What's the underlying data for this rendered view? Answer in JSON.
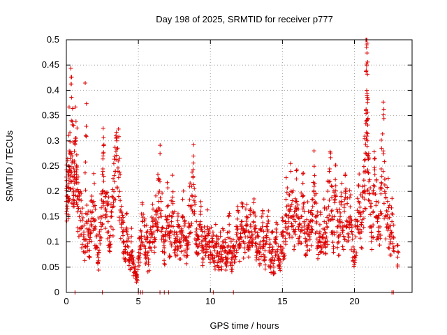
{
  "chart_data": {
    "type": "scatter",
    "title": "Day 198 of 2025, SRMTID for receiver p777",
    "xlabel": "GPS time / hours",
    "ylabel": "SRMTID / TECUs",
    "xlim": [
      0,
      24
    ],
    "ylim": [
      0,
      0.5
    ],
    "x_ticks": [
      0,
      5,
      10,
      15,
      20
    ],
    "y_ticks": [
      0,
      0.05,
      0.1,
      0.15,
      0.2,
      0.25,
      0.3,
      0.35,
      0.4,
      0.45,
      0.5
    ],
    "grid": true,
    "marker": "+",
    "color": "#dd0000",
    "series": [
      {
        "name": "SRMTID",
        "points": [
          [
            0.0,
            0.18
          ],
          [
            0.05,
            0.21
          ],
          [
            0.1,
            0.19
          ],
          [
            0.15,
            0.25
          ],
          [
            0.2,
            0.28
          ],
          [
            0.25,
            0.24
          ],
          [
            0.3,
            0.22
          ],
          [
            0.35,
            0.34
          ],
          [
            0.4,
            0.27
          ],
          [
            0.45,
            0.23
          ],
          [
            0.5,
            0.2
          ],
          [
            0.55,
            0.26
          ],
          [
            0.6,
            0.22
          ],
          [
            0.65,
            0.3
          ],
          [
            0.7,
            0.25
          ],
          [
            0.75,
            0.19
          ],
          [
            0.8,
            0.17
          ],
          [
            0.9,
            0.15
          ],
          [
            1.0,
            0.16
          ],
          [
            1.1,
            0.13
          ],
          [
            1.2,
            0.11
          ],
          [
            1.3,
            0.08
          ],
          [
            1.35,
            0.31
          ],
          [
            1.4,
            0.14
          ],
          [
            1.5,
            0.12
          ],
          [
            1.6,
            0.1
          ],
          [
            1.7,
            0.14
          ],
          [
            1.8,
            0.16
          ],
          [
            1.9,
            0.18
          ],
          [
            2.0,
            0.13
          ],
          [
            2.1,
            0.09
          ],
          [
            2.2,
            0.06
          ],
          [
            2.3,
            0.12
          ],
          [
            2.4,
            0.15
          ],
          [
            2.5,
            0.2
          ],
          [
            2.55,
            0.27
          ],
          [
            2.6,
            0.23
          ],
          [
            2.7,
            0.19
          ],
          [
            2.8,
            0.16
          ],
          [
            2.9,
            0.14
          ],
          [
            3.0,
            0.1
          ],
          [
            3.1,
            0.13
          ],
          [
            3.2,
            0.17
          ],
          [
            3.3,
            0.2
          ],
          [
            3.4,
            0.24
          ],
          [
            3.5,
            0.3
          ],
          [
            3.6,
            0.26
          ],
          [
            3.7,
            0.2
          ],
          [
            3.8,
            0.16
          ],
          [
            3.9,
            0.12
          ],
          [
            4.0,
            0.1
          ],
          [
            4.1,
            0.08
          ],
          [
            4.2,
            0.12
          ],
          [
            4.3,
            0.09
          ],
          [
            4.4,
            0.06
          ],
          [
            4.5,
            0.1
          ],
          [
            4.6,
            0.07
          ],
          [
            4.7,
            0.05
          ],
          [
            4.8,
            0.04
          ],
          [
            4.9,
            0.03
          ],
          [
            5.0,
            0.06
          ],
          [
            5.1,
            0.09
          ],
          [
            5.2,
            0.12
          ],
          [
            5.3,
            0.14
          ],
          [
            5.4,
            0.11
          ],
          [
            5.5,
            0.08
          ],
          [
            5.6,
            0.1
          ],
          [
            5.7,
            0.06
          ],
          [
            5.8,
            0.09
          ],
          [
            5.9,
            0.12
          ],
          [
            6.0,
            0.14
          ],
          [
            6.1,
            0.1
          ],
          [
            6.2,
            0.16
          ],
          [
            6.3,
            0.13
          ],
          [
            6.4,
            0.18
          ],
          [
            6.5,
            0.22
          ],
          [
            6.6,
            0.15
          ],
          [
            6.7,
            0.11
          ],
          [
            6.8,
            0.08
          ],
          [
            6.9,
            0.12
          ],
          [
            7.0,
            0.17
          ],
          [
            7.1,
            0.13
          ],
          [
            7.2,
            0.1
          ],
          [
            7.3,
            0.14
          ],
          [
            7.4,
            0.18
          ],
          [
            7.5,
            0.12
          ],
          [
            7.6,
            0.09
          ],
          [
            7.7,
            0.11
          ],
          [
            7.8,
            0.13
          ],
          [
            7.9,
            0.1
          ],
          [
            8.0,
            0.12
          ],
          [
            8.1,
            0.15
          ],
          [
            8.2,
            0.11
          ],
          [
            8.3,
            0.08
          ],
          [
            8.4,
            0.1
          ],
          [
            8.5,
            0.13
          ],
          [
            8.6,
            0.17
          ],
          [
            8.7,
            0.21
          ],
          [
            8.8,
            0.23
          ],
          [
            8.9,
            0.16
          ],
          [
            9.0,
            0.12
          ],
          [
            9.1,
            0.09
          ],
          [
            9.2,
            0.11
          ],
          [
            9.3,
            0.14
          ],
          [
            9.4,
            0.1
          ],
          [
            9.5,
            0.08
          ],
          [
            9.6,
            0.12
          ],
          [
            9.7,
            0.09
          ],
          [
            9.8,
            0.13
          ],
          [
            9.9,
            0.1
          ],
          [
            10.0,
            0.08
          ],
          [
            10.1,
            0.11
          ],
          [
            10.2,
            0.09
          ],
          [
            10.3,
            0.07
          ],
          [
            10.4,
            0.1
          ],
          [
            10.5,
            0.08
          ],
          [
            10.6,
            0.06
          ],
          [
            10.7,
            0.09
          ],
          [
            10.8,
            0.07
          ],
          [
            10.9,
            0.1
          ],
          [
            11.0,
            0.08
          ],
          [
            11.1,
            0.06
          ],
          [
            11.2,
            0.09
          ],
          [
            11.3,
            0.12
          ],
          [
            11.4,
            0.08
          ],
          [
            11.5,
            0.06
          ],
          [
            11.6,
            0.09
          ],
          [
            11.7,
            0.07
          ],
          [
            11.8,
            0.1
          ],
          [
            11.9,
            0.13
          ],
          [
            12.0,
            0.09
          ],
          [
            12.1,
            0.11
          ],
          [
            12.2,
            0.14
          ],
          [
            12.3,
            0.1
          ],
          [
            12.4,
            0.12
          ],
          [
            12.5,
            0.15
          ],
          [
            12.6,
            0.11
          ],
          [
            12.7,
            0.09
          ],
          [
            12.8,
            0.13
          ],
          [
            12.9,
            0.1
          ],
          [
            13.0,
            0.14
          ],
          [
            13.1,
            0.12
          ],
          [
            13.2,
            0.09
          ],
          [
            13.3,
            0.11
          ],
          [
            13.4,
            0.08
          ],
          [
            13.5,
            0.1
          ],
          [
            13.6,
            0.13
          ],
          [
            13.7,
            0.09
          ],
          [
            13.8,
            0.07
          ],
          [
            13.9,
            0.1
          ],
          [
            14.0,
            0.12
          ],
          [
            14.1,
            0.08
          ],
          [
            14.2,
            0.06
          ],
          [
            14.3,
            0.09
          ],
          [
            14.4,
            0.05
          ],
          [
            14.5,
            0.08
          ],
          [
            14.6,
            0.11
          ],
          [
            14.7,
            0.07
          ],
          [
            14.8,
            0.05
          ],
          [
            14.9,
            0.09
          ],
          [
            15.0,
            0.12
          ],
          [
            15.1,
            0.1
          ],
          [
            15.2,
            0.14
          ],
          [
            15.3,
            0.17
          ],
          [
            15.4,
            0.13
          ],
          [
            15.5,
            0.16
          ],
          [
            15.6,
            0.2
          ],
          [
            15.7,
            0.15
          ],
          [
            15.8,
            0.12
          ],
          [
            15.9,
            0.14
          ],
          [
            16.0,
            0.18
          ],
          [
            16.1,
            0.13
          ],
          [
            16.2,
            0.11
          ],
          [
            16.3,
            0.15
          ],
          [
            16.4,
            0.19
          ],
          [
            16.5,
            0.14
          ],
          [
            16.6,
            0.1
          ],
          [
            16.7,
            0.12
          ],
          [
            16.8,
            0.16
          ],
          [
            16.9,
            0.11
          ],
          [
            17.0,
            0.13
          ],
          [
            17.1,
            0.17
          ],
          [
            17.2,
            0.21
          ],
          [
            17.3,
            0.15
          ],
          [
            17.4,
            0.12
          ],
          [
            17.5,
            0.09
          ],
          [
            17.6,
            0.12
          ],
          [
            17.7,
            0.08
          ],
          [
            17.8,
            0.11
          ],
          [
            17.9,
            0.14
          ],
          [
            18.0,
            0.1
          ],
          [
            18.1,
            0.13
          ],
          [
            18.2,
            0.17
          ],
          [
            18.3,
            0.22
          ],
          [
            18.4,
            0.16
          ],
          [
            18.5,
            0.12
          ],
          [
            18.6,
            0.15
          ],
          [
            18.7,
            0.19
          ],
          [
            18.8,
            0.13
          ],
          [
            18.9,
            0.1
          ],
          [
            19.0,
            0.14
          ],
          [
            19.1,
            0.18
          ],
          [
            19.2,
            0.13
          ],
          [
            19.3,
            0.16
          ],
          [
            19.4,
            0.2
          ],
          [
            19.5,
            0.14
          ],
          [
            19.6,
            0.11
          ],
          [
            19.7,
            0.15
          ],
          [
            19.8,
            0.12
          ],
          [
            19.9,
            0.09
          ],
          [
            20.0,
            0.07
          ],
          [
            20.1,
            0.11
          ],
          [
            20.2,
            0.14
          ],
          [
            20.3,
            0.18
          ],
          [
            20.4,
            0.15
          ],
          [
            20.5,
            0.12
          ],
          [
            20.6,
            0.16
          ],
          [
            20.7,
            0.2
          ],
          [
            20.75,
            0.24
          ],
          [
            20.8,
            0.36
          ],
          [
            20.82,
            0.44
          ],
          [
            20.85,
            0.49
          ],
          [
            20.87,
            0.39
          ],
          [
            20.9,
            0.3
          ],
          [
            20.95,
            0.27
          ],
          [
            21.0,
            0.22
          ],
          [
            21.1,
            0.17
          ],
          [
            21.2,
            0.13
          ],
          [
            21.3,
            0.16
          ],
          [
            21.4,
            0.21
          ],
          [
            21.5,
            0.18
          ],
          [
            21.6,
            0.14
          ],
          [
            21.7,
            0.12
          ],
          [
            21.8,
            0.16
          ],
          [
            21.9,
            0.23
          ],
          [
            22.0,
            0.28
          ],
          [
            22.1,
            0.2
          ],
          [
            22.2,
            0.15
          ],
          [
            22.3,
            0.18
          ],
          [
            22.4,
            0.13
          ],
          [
            22.5,
            0.1
          ],
          [
            22.6,
            0.14
          ],
          [
            22.7,
            0.11
          ],
          [
            23.0,
            0.07
          ]
        ],
        "zero_points": [
          0.6,
          2.5,
          5.0,
          5.15,
          5.3,
          6.5,
          6.8,
          7.1,
          10.2,
          11.6,
          22.6,
          22.7
        ]
      }
    ]
  }
}
